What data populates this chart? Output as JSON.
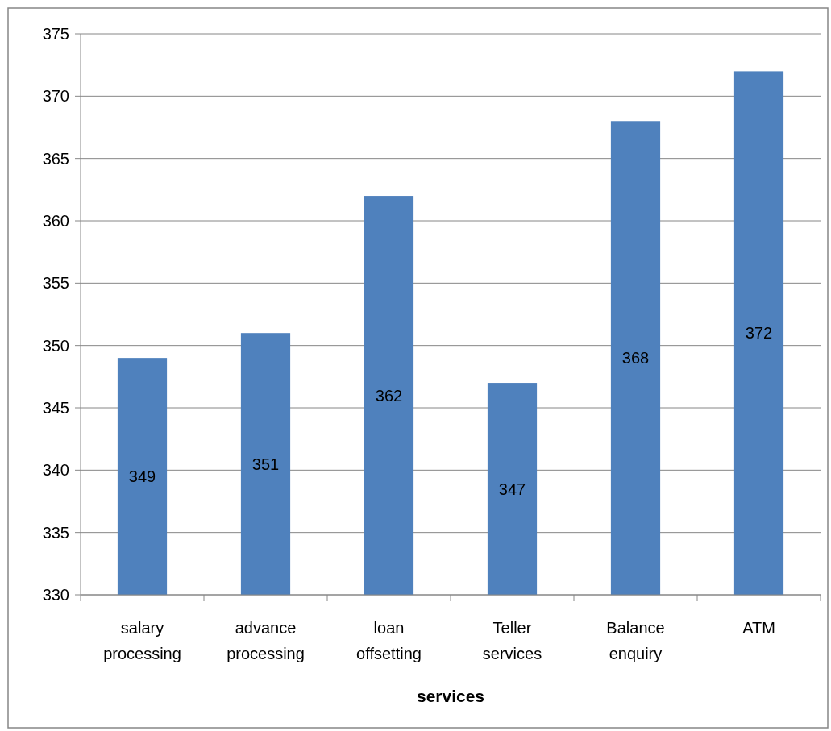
{
  "chart_data": {
    "type": "bar",
    "xlabel": "services",
    "categories": [
      "salary processing",
      "advance processing",
      "loan offsetting",
      "Teller services",
      "Balance enquiry",
      "ATM"
    ],
    "values": [
      349,
      351,
      362,
      347,
      368,
      372
    ],
    "color": "#4f81bd",
    "ylim": [
      330,
      375
    ],
    "yticks": [
      330,
      335,
      340,
      345,
      350,
      355,
      360,
      365,
      370,
      375
    ],
    "grid": "y",
    "data_labels": true
  }
}
